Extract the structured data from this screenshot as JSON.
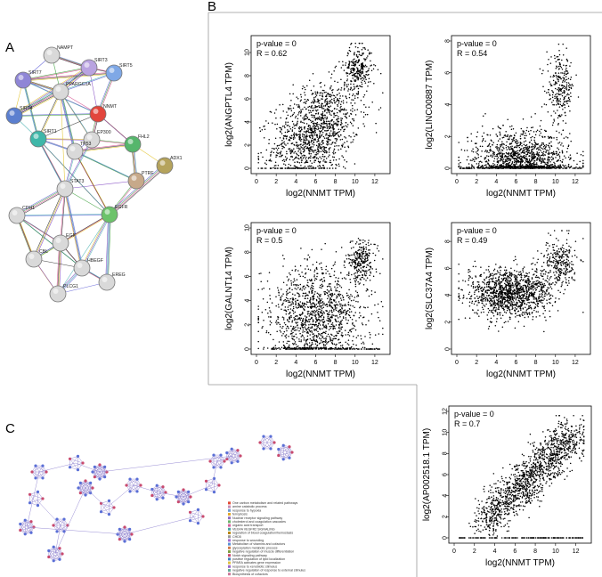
{
  "panels": {
    "a": "A",
    "b": "B",
    "c": "C"
  },
  "network": {
    "nodes": [
      {
        "label": "SIRT7",
        "color": "#8f86d6"
      },
      {
        "label": "NAMPT",
        "color": "#d9d9d9"
      },
      {
        "label": "SIRT3",
        "color": "#b9a3e0"
      },
      {
        "label": "SIRT5",
        "color": "#7fa8e6"
      },
      {
        "label": "PPARGC1A",
        "color": "#d9d9d9"
      },
      {
        "label": "SIRT4",
        "color": "#5b7fcf"
      },
      {
        "label": "NNMT",
        "color": "#e2453c"
      },
      {
        "label": "SIRT1",
        "color": "#3fb7a9"
      },
      {
        "label": "EP300",
        "color": "#d9d9d9"
      },
      {
        "label": "FHL2",
        "color": "#56b66c"
      },
      {
        "label": "TP53",
        "color": "#d9d9d9"
      },
      {
        "label": "ADX1",
        "color": "#b5a35c"
      },
      {
        "label": "PTRF",
        "color": "#c7a98a"
      },
      {
        "label": "STAT3",
        "color": "#d9d9d9"
      },
      {
        "label": "CDH1",
        "color": "#d9d9d9"
      },
      {
        "label": "EGFR",
        "color": "#6cc36a"
      },
      {
        "label": "EGF",
        "color": "#d9d9d9"
      },
      {
        "label": "CBL",
        "color": "#d9d9d9"
      },
      {
        "label": "HBEGF",
        "color": "#d9d9d9"
      },
      {
        "label": "EREG",
        "color": "#d9d9d9"
      },
      {
        "label": "PLCG1",
        "color": "#d9d9d9"
      }
    ]
  },
  "chart_data": [
    {
      "type": "scatter",
      "xlabel": "log2(NNMT TPM)",
      "ylabel": "log2(ANGPTL4 TPM)",
      "annotations": [
        "p-value = 0",
        "R = 0.62"
      ],
      "xticks": [
        "0",
        "2",
        "4",
        "6",
        "8",
        "10",
        "12"
      ],
      "yticks": [
        "0",
        "2",
        "4",
        "6",
        "8",
        "10"
      ],
      "xlim": [
        0,
        13
      ],
      "ylim": [
        0,
        11
      ],
      "pattern": {
        "cloud_center": [
          6,
          3.2
        ],
        "cloud_sd": [
          2.2,
          2.0
        ],
        "cluster_center": [
          10.3,
          8.6
        ],
        "cluster_sd": [
          0.7,
          1.0
        ],
        "slope": 0.35
      }
    },
    {
      "type": "scatter",
      "xlabel": "log2(NNMT TPM)",
      "ylabel": "log2(LINC00887 TPM)",
      "annotations": [
        "p-value = 0",
        "R = 0.54"
      ],
      "xticks": [
        "0",
        "2",
        "4",
        "6",
        "8",
        "10",
        "12"
      ],
      "yticks": [
        "0",
        "2",
        "4",
        "6",
        "8"
      ],
      "xlim": [
        0,
        13
      ],
      "ylim": [
        0,
        8
      ],
      "pattern": {
        "cloud_center": [
          6.5,
          0.5
        ],
        "cloud_sd": [
          2.5,
          0.9
        ],
        "cluster_center": [
          10.5,
          5.0
        ],
        "cluster_sd": [
          0.7,
          1.0
        ],
        "floor": 0
      }
    },
    {
      "type": "scatter",
      "xlabel": "log2(NNMT TPM)",
      "ylabel": "log2(GALNT14 TPM)",
      "annotations": [
        "p-value = 0",
        "R = 0.5"
      ],
      "xticks": [
        "0",
        "2",
        "4",
        "6",
        "8",
        "10",
        "12"
      ],
      "yticks": [
        "0",
        "2",
        "4",
        "6",
        "8",
        "10"
      ],
      "xlim": [
        0,
        13
      ],
      "ylim": [
        0,
        10
      ],
      "pattern": {
        "cloud_center": [
          6,
          2.8
        ],
        "cloud_sd": [
          2.4,
          2.0
        ],
        "cluster_center": [
          10.6,
          7.3
        ],
        "cluster_sd": [
          0.7,
          0.8
        ],
        "floor": 0
      }
    },
    {
      "type": "scatter",
      "xlabel": "log2(NNMT TPM)",
      "ylabel": "log2(SLC37A4 TPM)",
      "annotations": [
        "p-value = 0",
        "R = 0.49"
      ],
      "xticks": [
        "0",
        "2",
        "4",
        "6",
        "8",
        "10",
        "12"
      ],
      "yticks": [
        "0",
        "2",
        "4",
        "6",
        "8"
      ],
      "xlim": [
        0,
        13
      ],
      "ylim": [
        0,
        9
      ],
      "pattern": {
        "cloud_center": [
          5.5,
          4.2
        ],
        "cloud_sd": [
          2.2,
          0.9
        ],
        "cluster_center": [
          10.5,
          6.5
        ],
        "cluster_sd": [
          0.8,
          0.8
        ]
      }
    },
    {
      "type": "scatter",
      "xlabel": "log2(NNMT TPM)",
      "ylabel": "log2(AP002518.1 TPM)",
      "annotations": [
        "p-value = 0",
        "R = 0.7"
      ],
      "xticks": [
        "0",
        "2",
        "4",
        "6",
        "8",
        "10",
        "12"
      ],
      "yticks": [
        "0",
        "2",
        "4",
        "6",
        "8",
        "10",
        "12"
      ],
      "xlim": [
        0,
        13
      ],
      "ylim": [
        0,
        12
      ],
      "pattern": {
        "diagonal": true,
        "from": [
          3,
          1.5
        ],
        "to": [
          12,
          10
        ],
        "sd": 1.0,
        "floor": 0
      }
    }
  ],
  "enrichment_legend": [
    {
      "label": "One carbon metabolism and related pathways",
      "color": "#e24a33"
    },
    {
      "label": "amine catabolic process",
      "color": "#c98db5"
    },
    {
      "label": "response to hypoxia",
      "color": "#6d9bd1"
    },
    {
      "label": "ferroptosis",
      "color": "#e3a82b"
    },
    {
      "label": "Nuclear receptor signaling pathway",
      "color": "#8e6bbf"
    },
    {
      "label": "cholesterol and coagulation cascades",
      "color": "#6bb36b"
    },
    {
      "label": "organic acid transport",
      "color": "#d65d9e"
    },
    {
      "label": "VEGFA VEGFR2 SIGNALING",
      "color": "#4aa3a3"
    },
    {
      "label": "regulation of blood coagulation/hemostasis",
      "color": "#b8860b"
    },
    {
      "label": "CHD5",
      "color": "#999999"
    },
    {
      "label": "response to wounding",
      "color": "#a46bcf"
    },
    {
      "label": "Metabolism of vitamins and cofactors",
      "color": "#5a8fd6"
    },
    {
      "label": "glycosylation metabolic process",
      "color": "#d07b4a"
    },
    {
      "label": "negative regulation of muscle differentiation",
      "color": "#7f9f3f"
    },
    {
      "label": "Notch signaling pathway",
      "color": "#c94a6e"
    },
    {
      "label": "positive regulation of lipid localization",
      "color": "#3f7fbf"
    },
    {
      "label": "PPARA activates gene expression",
      "color": "#e0c040"
    },
    {
      "label": "response to xenobiotic stimulus",
      "color": "#9966cc"
    },
    {
      "label": "negative regulation of response to external stimulus",
      "color": "#66aa99"
    },
    {
      "label": "Biosynthesis of cofactors",
      "color": "#cc7799"
    }
  ]
}
